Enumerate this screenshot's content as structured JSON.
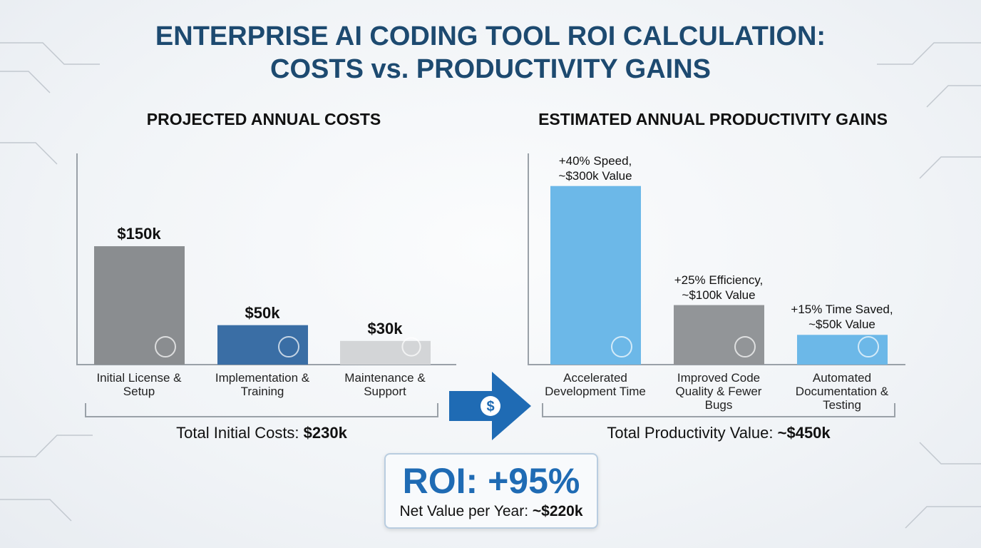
{
  "title_line1": "ENTERPRISE AI CODING TOOL ROI CALCULATION:",
  "title_line2": "COSTS vs. PRODUCTIVITY GAINS",
  "colors": {
    "title": "#1d4a70",
    "accent": "#1f6bb4"
  },
  "chart_data": [
    {
      "type": "bar",
      "title": "PROJECTED ANNUAL COSTS",
      "categories": [
        "Initial License & Setup",
        "Implementation & Training",
        "Maintenance & Support"
      ],
      "values": [
        150,
        50,
        30
      ],
      "unit": "$k",
      "data_labels": [
        "$150k",
        "$50k",
        "$30k"
      ],
      "colors": [
        "#8a8d90",
        "#3a6ea5",
        "#d3d5d7"
      ],
      "icons": [
        "gears-icon",
        "trainer-monitor-icon",
        "hand-coin-icon"
      ],
      "ylim": [
        0,
        160
      ],
      "total_label": "Total Initial Costs:",
      "total_value": "$230k"
    },
    {
      "type": "bar",
      "title": "ESTIMATED ANNUAL PRODUCTIVITY GAINS",
      "categories": [
        "Accelerated Development Time",
        "Improved Code Quality & Fewer Bugs",
        "Automated Documentation & Testing"
      ],
      "values": [
        300,
        100,
        50
      ],
      "unit": "$k",
      "data_labels": [
        [
          "+40% Speed,",
          "~$300k Value"
        ],
        [
          "+25% Efficiency,",
          "~$100k Value"
        ],
        [
          "+15% Time Saved,",
          "~$50k Value"
        ]
      ],
      "colors": [
        "#6cb8e8",
        "#929598",
        "#6cb8e8"
      ],
      "icons": [
        "speed-gear-icon",
        "code-window-icon",
        "clock-icon"
      ],
      "ylim": [
        0,
        320
      ],
      "total_label": "Total Productivity Value:",
      "total_value": "~$450k"
    }
  ],
  "roi": {
    "value": "ROI: +95%",
    "net_label": "Net Value per Year:",
    "net_value": "~$220k"
  }
}
